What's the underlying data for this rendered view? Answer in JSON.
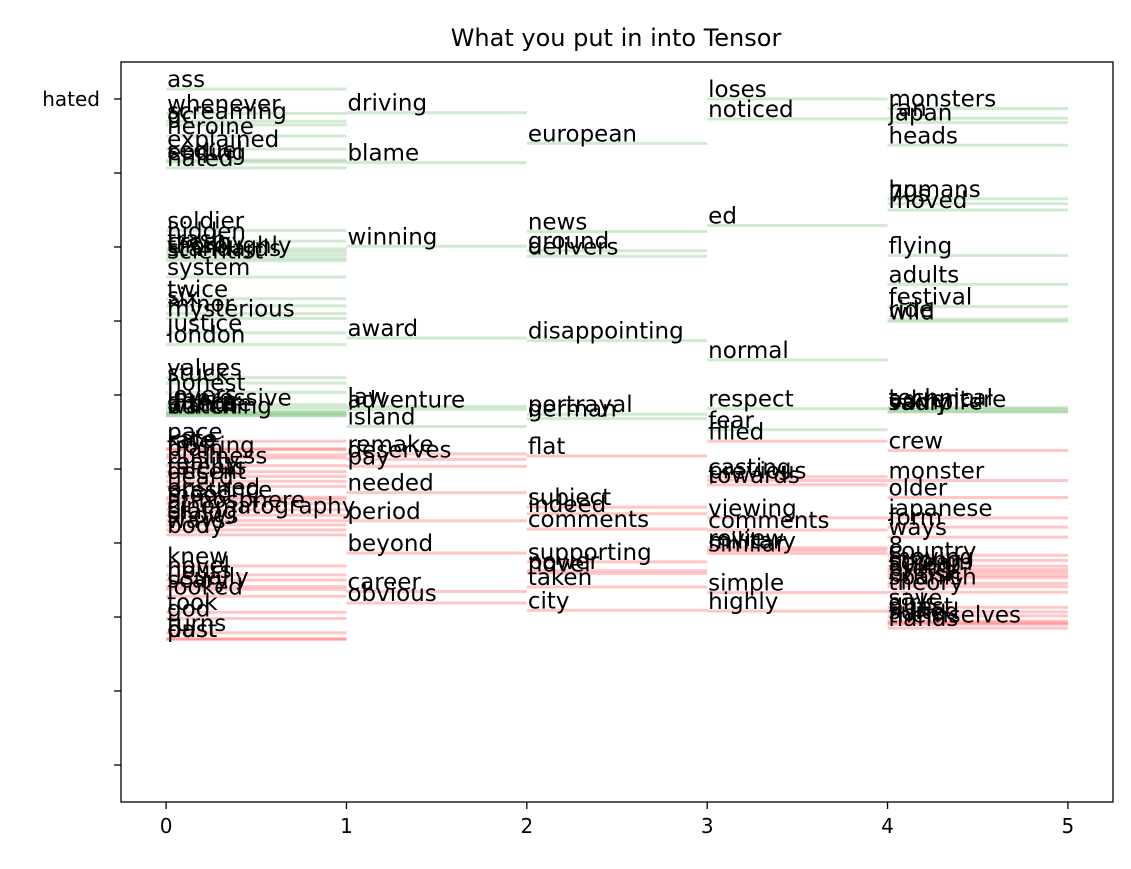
{
  "chart_data": {
    "type": "line",
    "title": "What you put in into Tensor",
    "xlabel": "",
    "ylabel": "",
    "xlim": [
      -0.25,
      5.25
    ],
    "ylim": [
      -1.0,
      1.0
    ],
    "x_ticks": [
      0,
      1,
      2,
      3,
      4,
      5
    ],
    "y_ticks": [
      -0.9,
      -0.7,
      -0.5,
      -0.3,
      -0.1,
      0.1,
      0.3,
      0.5,
      0.7,
      0.9
    ],
    "y_tick_labels": [
      "",
      "",
      "",
      "",
      "",
      "",
      "",
      "",
      "",
      "hated"
    ],
    "grid": false,
    "legend": "none",
    "colors": {
      "positive": "#2ca02c",
      "negative": "#ff0000",
      "text": "#000000",
      "axis": "#000000"
    },
    "series": [
      {
        "x": [
          0,
          1
        ],
        "words": [
          [
            "ass",
            0.927
          ],
          [
            "whenever",
            0.861
          ],
          [
            "screaming",
            0.84
          ],
          [
            "gc",
            0.83
          ],
          [
            "heroine",
            0.8
          ],
          [
            "explained",
            0.765
          ],
          [
            "sequel",
            0.735
          ],
          [
            "ending",
            0.73
          ],
          [
            "hated",
            0.714
          ],
          [
            "soldier",
            0.545
          ],
          [
            "hidden",
            0.516
          ],
          [
            "trash",
            0.495
          ],
          [
            "creepy",
            0.488
          ],
          [
            "thoroughly",
            0.479
          ],
          [
            "standards",
            0.47
          ],
          [
            "scientist",
            0.463
          ],
          [
            "system",
            0.419
          ],
          [
            "twice",
            0.36
          ],
          [
            "six",
            0.341
          ],
          [
            "minor",
            0.32
          ],
          [
            "mysterious",
            0.307
          ],
          [
            "justice",
            0.268
          ],
          [
            "london",
            0.236
          ],
          [
            "values",
            0.147
          ],
          [
            "stuck",
            0.132
          ],
          [
            "honest",
            0.107
          ],
          [
            "lovers",
            0.074
          ],
          [
            "impressive",
            0.066
          ],
          [
            "dance",
            0.057
          ],
          [
            "intense",
            0.052
          ],
          [
            "arthur",
            0.05
          ],
          [
            "bunch",
            0.045
          ],
          [
            "watching",
            0.044
          ],
          [
            "pace",
            -0.025
          ],
          [
            "kate",
            -0.045
          ],
          [
            "rate",
            -0.048
          ],
          [
            "frosting",
            -0.062
          ],
          [
            "plain",
            -0.07
          ],
          [
            "business",
            -0.091
          ],
          [
            "reality",
            -0.107
          ],
          [
            "talents",
            -0.12
          ],
          [
            "decent",
            -0.133
          ],
          [
            "heard",
            -0.147
          ],
          [
            "ensured",
            -0.176
          ],
          [
            "presence",
            -0.182
          ],
          [
            "mood",
            -0.193
          ],
          [
            "atmosphere",
            -0.21
          ],
          [
            "cinematography",
            -0.225
          ],
          [
            "dialog",
            -0.24
          ],
          [
            "shows",
            -0.251
          ],
          [
            "ways",
            -0.265
          ],
          [
            "body",
            -0.278
          ],
          [
            "knew",
            -0.362
          ],
          [
            "novel",
            -0.386
          ],
          [
            "hours",
            -0.4
          ],
          [
            "usually",
            -0.418
          ],
          [
            "scary",
            -0.425
          ],
          [
            "looked",
            -0.444
          ],
          [
            "took",
            -0.487
          ],
          [
            "god",
            -0.504
          ],
          [
            "turns",
            -0.543
          ],
          [
            "past",
            -0.559
          ],
          [
            "dust",
            -0.56
          ]
        ]
      },
      {
        "x": [
          1,
          2
        ],
        "words": [
          [
            "driving",
            0.863
          ],
          [
            "blame",
            0.728
          ],
          [
            "winning",
            0.502
          ],
          [
            "award",
            0.254
          ],
          [
            "law",
            0.069
          ],
          [
            "adventure",
            0.061
          ],
          [
            "island",
            0.015
          ],
          [
            "remake",
            -0.059
          ],
          [
            "deserves",
            -0.074
          ],
          [
            "pay",
            -0.093
          ],
          [
            "needed",
            -0.164
          ],
          [
            "period",
            -0.24
          ],
          [
            "beyond",
            -0.327
          ],
          [
            "career",
            -0.431
          ],
          [
            "obvious",
            -0.462
          ]
        ]
      },
      {
        "x": [
          2,
          3
        ],
        "words": [
          [
            "european",
            0.78
          ],
          [
            "news",
            0.542
          ],
          [
            "ground",
            0.49
          ],
          [
            "delivers",
            0.475
          ],
          [
            "disappointing",
            0.247
          ],
          [
            "portrayal",
            0.048
          ],
          [
            "german",
            0.036
          ],
          [
            "flat",
            -0.065
          ],
          [
            "subject",
            -0.203
          ],
          [
            "indeed",
            -0.221
          ],
          [
            "comments",
            -0.262
          ],
          [
            "supporting",
            -0.351
          ],
          [
            "power",
            -0.375
          ],
          [
            "novel",
            -0.382
          ],
          [
            "taken",
            -0.419
          ],
          [
            "city",
            -0.482
          ]
        ]
      },
      {
        "x": [
          3,
          4
        ],
        "words": [
          [
            "loses",
            0.9
          ],
          [
            "noticed",
            0.846
          ],
          [
            "ed",
            0.558
          ],
          [
            "normal",
            0.195
          ],
          [
            "respect",
            0.063
          ],
          [
            "fear",
            0.006
          ],
          [
            "filled",
            -0.025
          ],
          [
            "casting",
            -0.121
          ],
          [
            "previous",
            -0.131
          ],
          [
            "towards",
            -0.143
          ],
          [
            "viewing",
            -0.232
          ],
          [
            "comments",
            -0.265
          ],
          [
            "review",
            -0.313
          ],
          [
            "similar",
            -0.328
          ],
          [
            "military",
            -0.32
          ],
          [
            "simple",
            -0.434
          ],
          [
            "highly",
            -0.484
          ]
        ]
      },
      {
        "x": [
          4,
          5
        ],
        "words": [
          [
            "monsters",
            0.874
          ],
          [
            "ran",
            0.848
          ],
          [
            "japan",
            0.836
          ],
          [
            "heads",
            0.775
          ],
          [
            "humans",
            0.63
          ],
          [
            "70s",
            0.617
          ],
          [
            "moved",
            0.6
          ],
          [
            "flying",
            0.477
          ],
          [
            "adults",
            0.399
          ],
          [
            "festival",
            0.339
          ],
          [
            "ride",
            0.305
          ],
          [
            "wild",
            0.299
          ],
          [
            "technical",
            0.066
          ],
          [
            "adventure",
            0.062
          ],
          [
            "vampire",
            0.056
          ],
          [
            "sadly",
            0.054
          ],
          [
            "crew",
            -0.05
          ],
          [
            "monster",
            -0.131
          ],
          [
            "older",
            -0.177
          ],
          [
            "japanese",
            -0.232
          ],
          [
            "form",
            -0.257
          ],
          [
            "ways",
            -0.284
          ],
          [
            "8",
            -0.333
          ],
          [
            "country",
            -0.347
          ],
          [
            "moving",
            -0.363
          ],
          [
            "strong",
            -0.372
          ],
          [
            "scream",
            -0.379
          ],
          [
            "flying",
            -0.387
          ],
          [
            "pretty",
            -0.394
          ],
          [
            "british",
            -0.409
          ],
          [
            "spanish",
            -0.418
          ],
          [
            "theory",
            -0.433
          ],
          [
            "save",
            -0.474
          ],
          [
            "girls",
            -0.486
          ],
          [
            "quest",
            -0.497
          ],
          [
            "suited",
            -0.511
          ],
          [
            "hand",
            -0.516
          ],
          [
            "themselves",
            -0.52
          ],
          [
            "hands",
            -0.53
          ]
        ]
      }
    ]
  }
}
